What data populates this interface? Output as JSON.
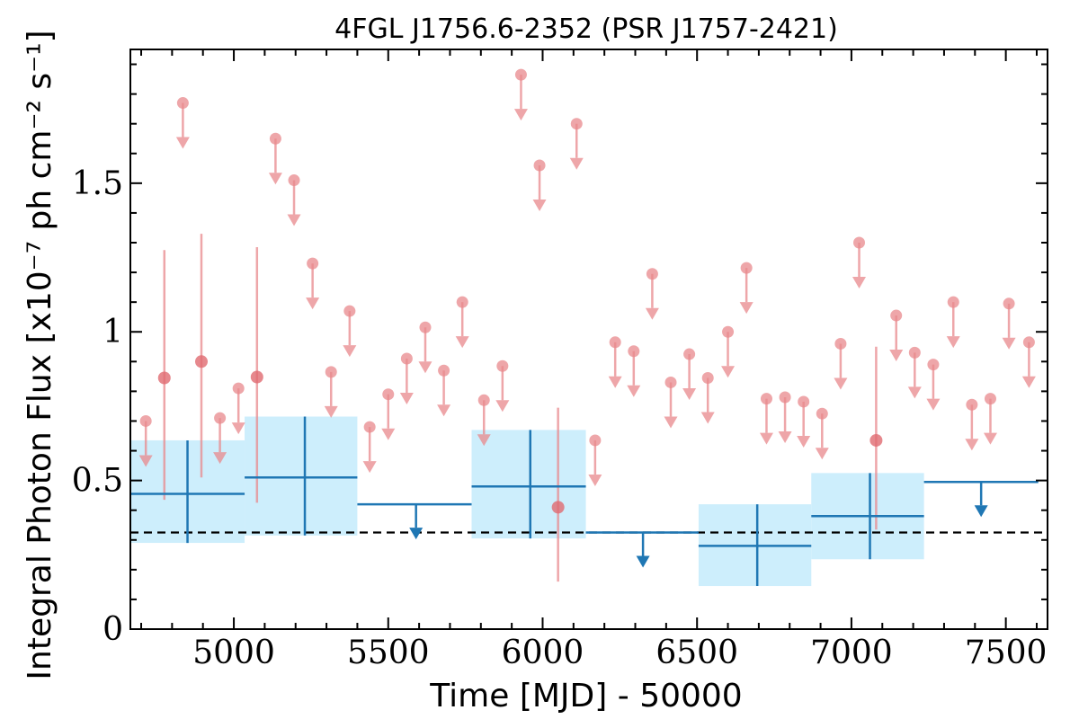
{
  "chart_data": {
    "type": "scatter",
    "title": "4FGL J1756.6-2352 (PSR J1757-2421)",
    "xlabel": "Time [MJD] - 50000",
    "ylabel": "Integral Photon Flux [x10⁻⁷ ph cm⁻² s⁻¹]",
    "xlim": [
      4665,
      7635
    ],
    "ylim": [
      0,
      1.95
    ],
    "x_ticks": [
      5000,
      5500,
      6000,
      6500,
      7000,
      7500
    ],
    "x_tick_labels": [
      "5000",
      "5500",
      "6000",
      "6500",
      "7000",
      "7500"
    ],
    "y_ticks": [
      0,
      0.5,
      1,
      1.5
    ],
    "y_tick_labels": [
      "0",
      "0.5",
      "1",
      "1.5"
    ],
    "reference_line": {
      "y": 0.325,
      "style": "dashed",
      "color": "#000000"
    },
    "colors": {
      "long_bins": "#1f77b4",
      "long_band": "#cdeefc",
      "short_bins": "#e8888c"
    },
    "series": [
      {
        "kind": "long_bin_detections",
        "points": [
          {
            "x": 4850,
            "xlo": 4665,
            "xhi": 5035,
            "y": 0.455,
            "ylo": 0.29,
            "yhi": 0.635
          },
          {
            "x": 5230,
            "xlo": 5035,
            "xhi": 5400,
            "y": 0.51,
            "ylo": 0.315,
            "yhi": 0.715
          },
          {
            "x": 5960,
            "xlo": 5770,
            "xhi": 6140,
            "y": 0.48,
            "ylo": 0.305,
            "yhi": 0.67
          },
          {
            "x": 6695,
            "xlo": 6505,
            "xhi": 6870,
            "y": 0.28,
            "ylo": 0.145,
            "yhi": 0.42
          },
          {
            "x": 7060,
            "xlo": 6870,
            "xhi": 7235,
            "y": 0.38,
            "ylo": 0.235,
            "yhi": 0.525
          }
        ]
      },
      {
        "kind": "long_bin_upper_limits",
        "points": [
          {
            "x": 5590,
            "xlo": 5400,
            "xhi": 5770,
            "y": 0.42
          },
          {
            "x": 6325,
            "xlo": 6140,
            "xhi": 6505,
            "y": 0.325
          },
          {
            "x": 7420,
            "xlo": 7235,
            "xhi": 7605,
            "y": 0.495
          }
        ]
      },
      {
        "kind": "short_bin_detections",
        "points": [
          {
            "x": 4775,
            "y": 0.845,
            "ylo": 0.435,
            "yhi": 1.275
          },
          {
            "x": 4895,
            "y": 0.9,
            "ylo": 0.51,
            "yhi": 1.33
          },
          {
            "x": 5075,
            "y": 0.848,
            "ylo": 0.425,
            "yhi": 1.285
          },
          {
            "x": 6050,
            "y": 0.41,
            "ylo": 0.16,
            "yhi": 0.745
          },
          {
            "x": 7080,
            "y": 0.635,
            "ylo": 0.335,
            "yhi": 0.95
          }
        ]
      },
      {
        "kind": "short_bin_upper_limits",
        "points": [
          {
            "x": 4715,
            "y": 0.7
          },
          {
            "x": 4835,
            "y": 1.77
          },
          {
            "x": 4955,
            "y": 0.71
          },
          {
            "x": 5015,
            "y": 0.81
          },
          {
            "x": 5135,
            "y": 1.65
          },
          {
            "x": 5195,
            "y": 1.51
          },
          {
            "x": 5255,
            "y": 1.23
          },
          {
            "x": 5315,
            "y": 0.865
          },
          {
            "x": 5375,
            "y": 1.07
          },
          {
            "x": 5440,
            "y": 0.68
          },
          {
            "x": 5500,
            "y": 0.79
          },
          {
            "x": 5560,
            "y": 0.91
          },
          {
            "x": 5620,
            "y": 1.015
          },
          {
            "x": 5680,
            "y": 0.87
          },
          {
            "x": 5740,
            "y": 1.1
          },
          {
            "x": 5810,
            "y": 0.77
          },
          {
            "x": 5870,
            "y": 0.885
          },
          {
            "x": 5930,
            "y": 1.865
          },
          {
            "x": 5990,
            "y": 1.56
          },
          {
            "x": 6110,
            "y": 1.7
          },
          {
            "x": 6170,
            "y": 0.635
          },
          {
            "x": 6235,
            "y": 0.965
          },
          {
            "x": 6295,
            "y": 0.935
          },
          {
            "x": 6355,
            "y": 1.195
          },
          {
            "x": 6415,
            "y": 0.83
          },
          {
            "x": 6475,
            "y": 0.925
          },
          {
            "x": 6535,
            "y": 0.845
          },
          {
            "x": 6600,
            "y": 1.0
          },
          {
            "x": 6660,
            "y": 1.215
          },
          {
            "x": 6725,
            "y": 0.775
          },
          {
            "x": 6785,
            "y": 0.78
          },
          {
            "x": 6845,
            "y": 0.765
          },
          {
            "x": 6905,
            "y": 0.725
          },
          {
            "x": 6965,
            "y": 0.96
          },
          {
            "x": 7025,
            "y": 1.3
          },
          {
            "x": 7145,
            "y": 1.055
          },
          {
            "x": 7205,
            "y": 0.93
          },
          {
            "x": 7265,
            "y": 0.89
          },
          {
            "x": 7330,
            "y": 1.1
          },
          {
            "x": 7390,
            "y": 0.755
          },
          {
            "x": 7450,
            "y": 0.775
          },
          {
            "x": 7510,
            "y": 1.095
          },
          {
            "x": 7575,
            "y": 0.965
          }
        ]
      }
    ]
  }
}
